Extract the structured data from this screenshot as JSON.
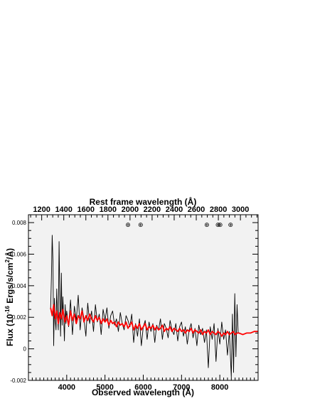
{
  "chart_data": {
    "type": "line",
    "xlabel": "Observed wavelength (Å)",
    "x2label": "Rest frame wavelength (Å)",
    "ylabel_prefix": "Flux (10",
    "ylabel_exp": "-16",
    "ylabel_suffix": " Ergs/s/cm",
    "ylabel_exp2": "2",
    "ylabel_end": "/Å)",
    "xlim": [
      3000,
      9000
    ],
    "ylim": [
      -0.002,
      0.0085
    ],
    "x2lim": [
      1080,
      3160
    ],
    "xticks": [
      4000,
      5000,
      6000,
      7000,
      8000
    ],
    "xtick_labels": [
      "4000",
      "5000",
      "6000",
      "7000",
      "8000"
    ],
    "x2ticks": [
      1200,
      1400,
      1600,
      1800,
      2000,
      2200,
      2400,
      2600,
      2800,
      3000
    ],
    "x2tick_labels": [
      "1200",
      "1400",
      "1600",
      "1800",
      "2000",
      "2200",
      "2400",
      "2600",
      "2800",
      "3000"
    ],
    "yticks": [
      -0.002,
      0,
      0.002,
      0.004,
      0.006,
      0.008
    ],
    "ytick_labels": [
      "-0.002",
      "0",
      "0.002",
      "0.004",
      "0.006",
      "0.008"
    ],
    "telluric_marker_symbol": "⊕",
    "telluric_markers_x": [
      5600,
      5930,
      7660,
      7950,
      8010,
      8280
    ],
    "plot_background": "#f2f2f2",
    "series": [
      {
        "color": "#000000",
        "x": [
          3580,
          3600,
          3620,
          3640,
          3660,
          3680,
          3700,
          3720,
          3740,
          3760,
          3780,
          3800,
          3820,
          3840,
          3860,
          3880,
          3900,
          3920,
          3940,
          3960,
          3980,
          4000,
          4050,
          4100,
          4150,
          4200,
          4250,
          4300,
          4350,
          4400,
          4450,
          4500,
          4550,
          4600,
          4650,
          4700,
          4750,
          4800,
          4850,
          4900,
          4950,
          5000,
          5050,
          5100,
          5150,
          5200,
          5250,
          5300,
          5350,
          5400,
          5450,
          5500,
          5550,
          5600,
          5650,
          5700,
          5750,
          5800,
          5850,
          5900,
          5950,
          6000,
          6050,
          6100,
          6150,
          6200,
          6250,
          6300,
          6350,
          6400,
          6450,
          6500,
          6550,
          6600,
          6650,
          6700,
          6750,
          6800,
          6850,
          6900,
          6950,
          7000,
          7050,
          7100,
          7150,
          7200,
          7250,
          7300,
          7350,
          7400,
          7450,
          7500,
          7550,
          7600,
          7650,
          7700,
          7750,
          7800,
          7850,
          7900,
          7950,
          8000,
          8050,
          8100,
          8150,
          8200,
          8250,
          8300,
          8330,
          8360,
          8390,
          8420,
          8450,
          8480
        ],
        "y": [
          0.0025,
          0.0045,
          0.0072,
          0.0055,
          0.0002,
          0.0032,
          0.0018,
          0.0012,
          0.0038,
          0.0022,
          0.0012,
          0.0068,
          0.0035,
          0.0008,
          0.0048,
          0.0015,
          0.0033,
          0.0021,
          0.0005,
          0.0028,
          0.0016,
          0.0024,
          0.0014,
          0.0031,
          0.0009,
          0.0027,
          0.0018,
          0.0034,
          0.0012,
          0.0026,
          0.0019,
          0.0008,
          0.0029,
          0.0016,
          0.0024,
          0.0011,
          0.0028,
          0.0017,
          0.0022,
          0.0009,
          0.0025,
          0.0018,
          0.0026,
          0.0013,
          0.0021,
          0.0024,
          0.0015,
          0.0019,
          0.0011,
          0.0023,
          0.0016,
          0.0012,
          0.0021,
          0.0018,
          0.0014,
          0.0022,
          0.0004,
          0.0016,
          0.0008,
          0.0019,
          0.0002,
          0.0014,
          0.0018,
          0.0006,
          0.0017,
          0.0011,
          0.0016,
          0.0004,
          0.0015,
          0.0012,
          0.0019,
          0.0006,
          0.0016,
          0.0013,
          0.0007,
          0.0018,
          0.0012,
          0.0009,
          0.0016,
          0.0005,
          0.0014,
          0.0017,
          0.0008,
          0.0014,
          0.0003,
          0.0012,
          0.0016,
          0.0007,
          0.0013,
          0.0002,
          0.0015,
          0.0009,
          0.0013,
          0.0004,
          0.0012,
          -0.0012,
          0.0014,
          0.0006,
          0.0016,
          -0.0008,
          0.0013,
          0.0003,
          0.0017,
          0.0006,
          0.0012,
          -0.0004,
          0.0011,
          -0.0018,
          0.0022,
          -0.0015,
          0.0035,
          -0.0005,
          0.0028,
          0.001
        ]
      },
      {
        "color": "#ff0000",
        "x": [
          3580,
          3620,
          3660,
          3700,
          3740,
          3780,
          3820,
          3860,
          3900,
          3950,
          4000,
          4050,
          4100,
          4150,
          4200,
          4250,
          4300,
          4350,
          4400,
          4450,
          4500,
          4550,
          4600,
          4650,
          4700,
          4750,
          4800,
          4850,
          4900,
          4950,
          5000,
          5050,
          5100,
          5150,
          5200,
          5250,
          5300,
          5350,
          5400,
          5450,
          5500,
          5550,
          5600,
          5650,
          5700,
          5750,
          5800,
          5850,
          5900,
          5950,
          6000,
          6050,
          6100,
          6150,
          6200,
          6250,
          6300,
          6350,
          6400,
          6450,
          6500,
          6550,
          6600,
          6650,
          6700,
          6750,
          6800,
          6850,
          6900,
          6950,
          7000,
          7050,
          7100,
          7150,
          7200,
          7250,
          7300,
          7350,
          7400,
          7450,
          7500,
          7550,
          7600,
          7650,
          7700,
          7750,
          7800,
          7850,
          7900,
          7950,
          8000,
          8050,
          8100,
          8150,
          8200,
          8250,
          8300,
          8350,
          8400,
          8450,
          8500,
          8600,
          8700,
          8800,
          8900,
          9000
        ],
        "y": [
          0.0026,
          0.0021,
          0.0028,
          0.0019,
          0.0024,
          0.0016,
          0.0023,
          0.0019,
          0.0025,
          0.0017,
          0.0021,
          0.0015,
          0.0024,
          0.0018,
          0.0022,
          0.0016,
          0.0021,
          0.0019,
          0.0024,
          0.0017,
          0.0021,
          0.0018,
          0.0022,
          0.0019,
          0.0017,
          0.0021,
          0.0018,
          0.002,
          0.0016,
          0.0019,
          0.0017,
          0.0019,
          0.0015,
          0.0018,
          0.0016,
          0.0017,
          0.0014,
          0.0017,
          0.0015,
          0.0016,
          0.0014,
          0.0017,
          0.0013,
          0.0015,
          0.0017,
          0.0012,
          0.0015,
          0.0013,
          0.0016,
          0.0012,
          0.0014,
          0.0016,
          0.0012,
          0.0014,
          0.0013,
          0.0015,
          0.0012,
          0.0014,
          0.0012,
          0.0013,
          0.0015,
          0.0011,
          0.0013,
          0.0012,
          0.0014,
          0.0011,
          0.0013,
          0.0012,
          0.0011,
          0.0013,
          0.0011,
          0.0012,
          0.001,
          0.0012,
          0.0011,
          0.0013,
          0.001,
          0.0012,
          0.0011,
          0.001,
          0.0012,
          0.0009,
          0.0011,
          0.001,
          0.0012,
          0.0009,
          0.0011,
          0.001,
          0.0009,
          0.0011,
          0.001,
          0.0008,
          0.001,
          0.0009,
          0.0011,
          0.0009,
          0.001,
          0.0011,
          0.0009,
          0.001,
          0.001,
          0.0009,
          0.001,
          0.001,
          0.0011,
          0.0011
        ]
      }
    ]
  }
}
